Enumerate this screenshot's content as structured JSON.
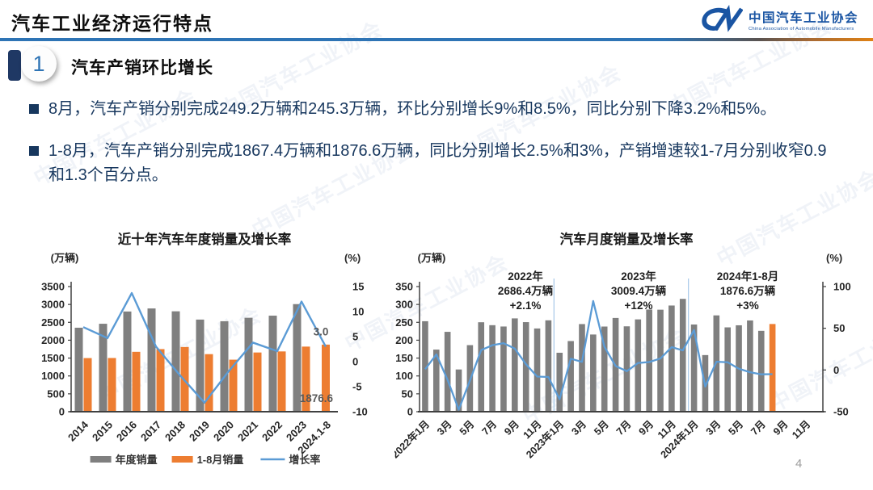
{
  "header": {
    "title": "汽车工业经济运行特点",
    "logo": {
      "name_cn": "中国汽车工业协会",
      "name_en": "China Association of Automobile Manufacturers"
    }
  },
  "section": {
    "number": "1",
    "title": "汽车产销环比增长"
  },
  "bullets": [
    {
      "text": "8月，汽车产销分别完成249.2万辆和245.3万辆，环比分别增长9%和8.5%，同比分别下降3.2%和5%。"
    },
    {
      "text": "1-8月，汽车产销分别完成1867.4万辆和1876.6万辆，同比分别增长2.5%和3%，产销增速较1-7月分别收窄0.9和1.3个百分点。"
    }
  ],
  "page_number": "4",
  "colors": {
    "accent_blue": "#2E74B5",
    "navy_text": "#17375E",
    "bar_gray": "#7F7F7F",
    "bar_orange": "#ED7D31",
    "line_blue": "#5B9BD5",
    "logo_blue": "#1A55A3"
  },
  "chart_data": [
    {
      "type": "bar+line",
      "title": "近十年汽车年度销量及增长率",
      "left_axis_unit": "(万辆)",
      "right_axis_unit": "(%)",
      "left_ylim": [
        0,
        3500
      ],
      "right_ylim": [
        -10,
        15
      ],
      "left_ticks": [
        0,
        500,
        1000,
        1500,
        2000,
        2500,
        3000,
        3500
      ],
      "right_ticks": [
        -10,
        -5,
        0,
        5,
        10,
        15
      ],
      "categories": [
        "2014",
        "2015",
        "2016",
        "2017",
        "2018",
        "2019",
        "2020",
        "2021",
        "2022",
        "2023",
        "2024.1-8"
      ],
      "series": [
        {
          "name": "年度销量",
          "kind": "bar",
          "color": "#7F7F7F",
          "values": [
            2349.2,
            2459.8,
            2802.8,
            2887.9,
            2808.1,
            2576.9,
            2531.1,
            2627.5,
            2686.4,
            3009.4,
            null
          ]
        },
        {
          "name": "1-8月销量",
          "kind": "bar",
          "color": "#ED7D31",
          "values": [
            1500,
            1502,
            1675,
            1751,
            1810,
            1610,
            1455,
            1656,
            1686,
            1821,
            1876.6
          ]
        },
        {
          "name": "增长率",
          "kind": "line",
          "color": "#5B9BD5",
          "values": [
            6.9,
            4.7,
            13.7,
            3.0,
            -2.8,
            -8.2,
            -1.9,
            3.8,
            2.1,
            12.0,
            3.0
          ]
        }
      ],
      "point_labels": [
        {
          "text": "3.0",
          "target": "line-end"
        },
        {
          "text": "1876.6",
          "target": "last-orange-bar"
        }
      ],
      "legend": [
        "年度销量",
        "1-8月销量",
        "增长率"
      ],
      "grid": false,
      "legend_position": "bottom"
    },
    {
      "type": "bar+line",
      "title": "汽车月度销量及增长率",
      "left_axis_unit": "(万辆)",
      "right_axis_unit": "(%)",
      "left_ylim": [
        0,
        350
      ],
      "right_ylim": [
        -50,
        100
      ],
      "left_ticks": [
        0,
        50,
        100,
        150,
        200,
        250,
        300,
        350
      ],
      "right_ticks": [
        -50,
        0,
        50,
        100
      ],
      "total_slots": 36,
      "x_tick_slot_step": 2,
      "x_tick_labels": [
        "2022年1月",
        "3月",
        "5月",
        "7月",
        "9月",
        "11月",
        "2023年1月",
        "3月",
        "5月",
        "7月",
        "9月",
        "11月",
        "2024年1月",
        "3月",
        "5月",
        "7月",
        "9月",
        "11月"
      ],
      "bar_series": {
        "name": "月度销量",
        "color": "#7F7F7F",
        "highlight_last_color": "#ED7D31",
        "values": [
          253.1,
          173.7,
          223.4,
          118.1,
          186.2,
          250.2,
          242.0,
          238.3,
          261.0,
          250.5,
          232.8,
          255.6,
          164.9,
          197.6,
          245.1,
          215.9,
          238.2,
          262.2,
          238.8,
          258.2,
          285.8,
          285.3,
          297.0,
          315.6,
          243.9,
          158.4,
          269.4,
          235.9,
          241.7,
          255.2,
          226.2,
          245.3
        ]
      },
      "line_series": {
        "name": "增长率",
        "color": "#5B9BD5",
        "values": [
          0.9,
          18.7,
          -11.7,
          -47.6,
          -12.6,
          23.8,
          29.7,
          32.1,
          25.7,
          6.9,
          -7.9,
          -8.4,
          -35.0,
          13.5,
          9.7,
          82.7,
          27.9,
          4.8,
          -1.4,
          8.4,
          9.5,
          13.8,
          27.4,
          23.5,
          47.9,
          -19.9,
          9.9,
          9.3,
          1.5,
          -2.7,
          -5.2,
          -5.0
        ]
      },
      "year_separators_after_slot": [
        11,
        23
      ],
      "annotations": [
        {
          "lines": [
            "2022年",
            "2686.4万辆",
            "+2.1%"
          ]
        },
        {
          "lines": [
            "2023年",
            "3009.4万辆",
            "+12%"
          ]
        },
        {
          "lines": [
            "2024年1-8月",
            "1876.6万辆",
            "+3%"
          ]
        }
      ],
      "grid": false
    }
  ]
}
